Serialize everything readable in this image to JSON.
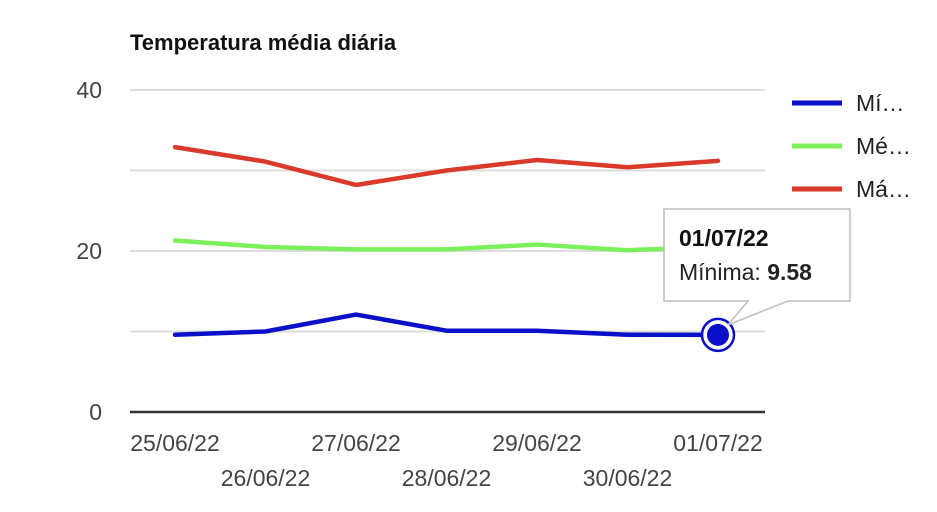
{
  "chart_data": {
    "type": "line",
    "title": "Temperatura média diária",
    "xlabel": "",
    "ylabel": "",
    "categories": [
      "25/06/22",
      "26/06/22",
      "27/06/22",
      "28/06/22",
      "29/06/22",
      "30/06/22",
      "01/07/22"
    ],
    "y_ticks": [
      "0",
      "20",
      "40"
    ],
    "ylim": [
      0,
      40
    ],
    "grid": true,
    "legend_position": "right",
    "series": [
      {
        "name": "Mí…",
        "color": "#0a10c8",
        "values": [
          9.6,
          10.0,
          12.1,
          10.1,
          10.1,
          9.6,
          9.58
        ]
      },
      {
        "name": "Mé…",
        "color": "#7cf05a",
        "values": [
          21.3,
          20.5,
          20.2,
          20.2,
          20.8,
          20.1,
          20.5
        ]
      },
      {
        "name": "Má…",
        "color": "#d93a2b",
        "values": [
          32.9,
          31.1,
          28.2,
          30.0,
          31.3,
          30.4,
          31.2
        ]
      }
    ],
    "tooltip": {
      "title": "01/07/22",
      "label": "Mínima:",
      "value": "9.58",
      "series_index": 0,
      "point_index": 6
    }
  }
}
